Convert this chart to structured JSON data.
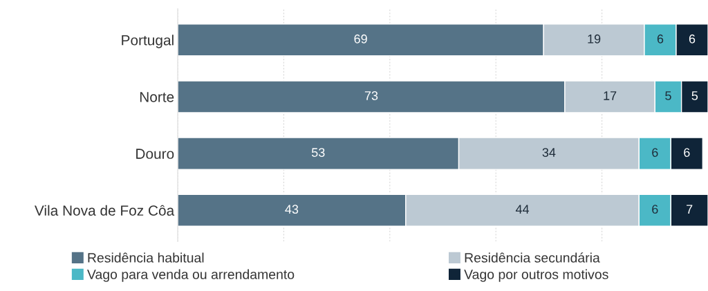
{
  "chart_data": {
    "type": "bar",
    "orientation": "horizontal",
    "stacked": true,
    "data_labels": true,
    "grid": "x",
    "legend": "bottom",
    "tick_labels": "y",
    "categories": [
      "Portugal",
      "Norte",
      "Douro",
      "Vila Nova de Foz Côa"
    ],
    "xlim": [
      0,
      100
    ],
    "xticks": [
      {
        "value": 0,
        "label": null
      },
      {
        "value": 20,
        "label": null
      },
      {
        "value": 40,
        "label": null
      },
      {
        "value": 60,
        "label": null
      },
      {
        "value": 80,
        "label": null
      }
    ],
    "series": [
      {
        "name": "Residência habitual",
        "color": "#557387",
        "values": [
          69,
          73,
          53,
          43
        ]
      },
      {
        "name": "Residência secundária",
        "color": "#bcc9d3",
        "values": [
          19,
          17,
          34,
          44
        ]
      },
      {
        "name": "Vago para venda ou arrendamento",
        "color": "#4bb8c6",
        "values": [
          6,
          5,
          6,
          6
        ]
      },
      {
        "name": "Vago por outros motivos",
        "color": "#0f2438",
        "values": [
          6,
          5,
          6,
          7
        ]
      }
    ]
  }
}
